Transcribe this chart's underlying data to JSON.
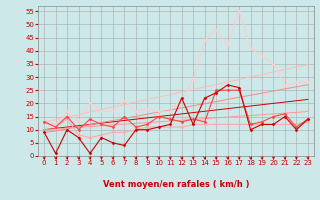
{
  "xlabel": "Vent moyen/en rafales ( km/h )",
  "xlim": [
    -0.5,
    23.5
  ],
  "ylim": [
    0,
    57
  ],
  "yticks": [
    0,
    5,
    10,
    15,
    20,
    25,
    30,
    35,
    40,
    45,
    50,
    55
  ],
  "xticks": [
    0,
    1,
    2,
    3,
    4,
    5,
    6,
    7,
    8,
    9,
    10,
    11,
    12,
    13,
    14,
    15,
    16,
    17,
    18,
    19,
    20,
    21,
    22,
    23
  ],
  "bg_color": "#cce8e8",
  "grid_color": "#aaaaaa",
  "series": [
    {
      "y": [
        9,
        1,
        10,
        7,
        1,
        7,
        5,
        4,
        10,
        10,
        11,
        12,
        22,
        12,
        22,
        24,
        27,
        26,
        10,
        12,
        12,
        15,
        10,
        14
      ],
      "color": "#cc0000",
      "lw": 0.8,
      "marker": "D",
      "ms": 1.5,
      "zorder": 5,
      "linestyle": "-"
    },
    {
      "y": [
        13,
        11,
        14,
        8,
        7,
        8,
        9,
        9,
        10,
        11,
        11,
        11,
        11,
        12,
        12,
        12,
        12,
        12,
        12,
        12,
        12,
        12,
        12,
        13
      ],
      "color": "#ffaaaa",
      "lw": 0.8,
      "marker": "D",
      "ms": 1.5,
      "zorder": 4,
      "linestyle": "-"
    },
    {
      "y": [
        13,
        11,
        15,
        10,
        14,
        12,
        11,
        15,
        11,
        12,
        15,
        14,
        13,
        14,
        13,
        25,
        25,
        25,
        12,
        13,
        15,
        16,
        11,
        14
      ],
      "color": "#ff4444",
      "lw": 0.8,
      "marker": "D",
      "ms": 1.5,
      "zorder": 4,
      "linestyle": "-"
    },
    {
      "y": [
        13,
        12,
        17,
        13,
        20,
        17,
        17,
        21,
        17,
        18,
        17,
        17,
        22,
        29,
        44,
        48,
        42,
        55,
        41,
        38,
        35,
        27,
        28,
        28
      ],
      "color": "#ffcccc",
      "lw": 0.8,
      "marker": "D",
      "ms": 1.5,
      "zorder": 3,
      "linestyle": "-"
    },
    {
      "y": [
        10,
        10.5,
        11,
        11.5,
        12,
        12.5,
        13,
        13.5,
        14,
        14.5,
        15,
        15.5,
        16,
        16.5,
        17,
        17.5,
        18,
        18.5,
        19,
        19.5,
        20,
        20.5,
        21,
        21.5
      ],
      "color": "#cc0000",
      "lw": 0.7,
      "marker": null,
      "ms": 0,
      "zorder": 2,
      "linestyle": "-"
    },
    {
      "y": [
        10,
        10.3,
        10.6,
        10.9,
        11.2,
        11.5,
        11.8,
        12.1,
        12.4,
        12.7,
        13,
        13.3,
        13.6,
        13.9,
        14.2,
        14.5,
        14.8,
        15.1,
        15.4,
        15.7,
        16,
        16.3,
        16.6,
        16.9
      ],
      "color": "#ff9999",
      "lw": 0.7,
      "marker": null,
      "ms": 0,
      "zorder": 2,
      "linestyle": "-"
    },
    {
      "y": [
        9,
        9.5,
        10.3,
        11.1,
        11.9,
        12.7,
        13.5,
        14.3,
        15.1,
        15.9,
        16.7,
        17.5,
        18.3,
        19.1,
        19.9,
        20.7,
        21.5,
        22.3,
        23.1,
        23.9,
        24.7,
        25.5,
        26.3,
        27.1
      ],
      "color": "#ff8888",
      "lw": 0.7,
      "marker": null,
      "ms": 0,
      "zorder": 2,
      "linestyle": "-"
    },
    {
      "y": [
        13,
        13.8,
        14.9,
        15.7,
        16.8,
        17.6,
        18.7,
        19.5,
        20.6,
        21.4,
        22.5,
        23.3,
        24.4,
        25.2,
        26.3,
        27.1,
        28.2,
        29,
        30.1,
        30.9,
        32,
        32.8,
        33.9,
        34.7
      ],
      "color": "#ffbbbb",
      "lw": 0.7,
      "marker": null,
      "ms": 0,
      "zorder": 2,
      "linestyle": "-"
    }
  ],
  "arrow_color": "#cc0000",
  "xlabel_color": "#cc0000",
  "xlabel_fontsize": 6,
  "tick_fontsize": 5
}
